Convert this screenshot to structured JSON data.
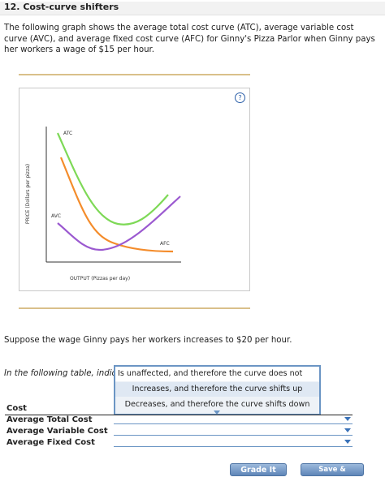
{
  "question": {
    "title": "12. Cost-curve shifters",
    "intro": "The following graph shows the average total cost curve (ATC), average variable cost curve (AVC), and average fixed cost curve (AFC) for Ginny's Pizza Parlor when Ginny pays her workers a wage of $15 per hour."
  },
  "graph": {
    "help_symbol": "?",
    "y_axis_label": "PRICE (Dollars per pizza)",
    "x_axis_label": "OUTPUT (Pizzas per day)",
    "curves": [
      {
        "label": "ATC",
        "color": "#7ed957"
      },
      {
        "label": "AVC",
        "color": "#9b59d0"
      },
      {
        "label": "AFC",
        "color": "#f48c2b"
      }
    ]
  },
  "scenario": "Suppose the wage Ginny pays her workers increases to $20 per hour.",
  "table_intro": "In the following table, indica",
  "dropdown": {
    "options": [
      "Is unaffected, and therefore the curve does not shift",
      "Increases, and therefore the curve shifts up",
      "Decreases, and therefore the curve shifts down"
    ]
  },
  "table": {
    "header": "Cost",
    "rows": [
      "Average Total Cost",
      "Average Variable Cost",
      "Average Fixed Cost"
    ]
  },
  "buttons": {
    "grade": "Grade It Now",
    "save": "Save & Continue"
  },
  "colors": {
    "accent_blue": "#6b95c4",
    "rule_gold": "#d9c08a"
  }
}
